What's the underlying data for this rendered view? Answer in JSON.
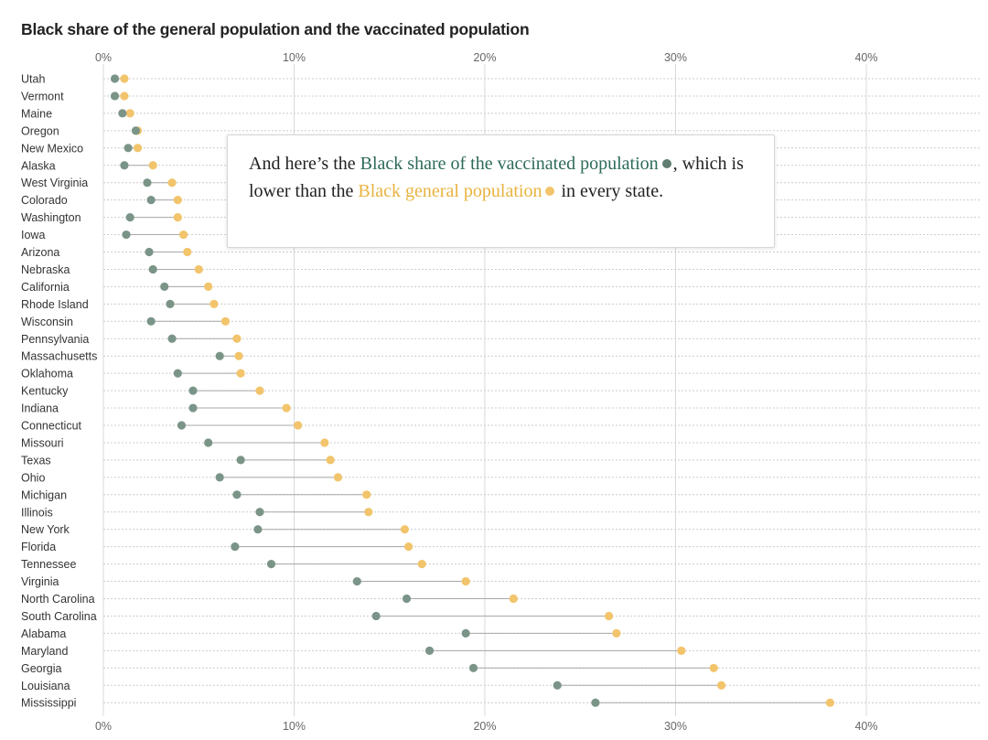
{
  "chart_data": {
    "type": "dot-range",
    "title": "Black share of the general population and the vaccinated population",
    "xlim": [
      0,
      45
    ],
    "x_ticks": [
      "0%",
      "10%",
      "20%",
      "30%",
      "40%"
    ],
    "x_tick_values": [
      0,
      10,
      20,
      30,
      40
    ],
    "series": [
      {
        "name": "Black share of the vaccinated population",
        "color": "#7b9488"
      },
      {
        "name": "Black general population",
        "color": "#f2c46b"
      }
    ],
    "states": [
      {
        "name": "Utah",
        "vaccinated": 0.6,
        "general": 1.1
      },
      {
        "name": "Vermont",
        "vaccinated": 0.6,
        "general": 1.1
      },
      {
        "name": "Maine",
        "vaccinated": 1.0,
        "general": 1.4
      },
      {
        "name": "Oregon",
        "vaccinated": 1.7,
        "general": 1.8
      },
      {
        "name": "New Mexico",
        "vaccinated": 1.3,
        "general": 1.8
      },
      {
        "name": "Alaska",
        "vaccinated": 1.1,
        "general": 2.6
      },
      {
        "name": "West Virginia",
        "vaccinated": 2.3,
        "general": 3.6
      },
      {
        "name": "Colorado",
        "vaccinated": 2.5,
        "general": 3.9
      },
      {
        "name": "Washington",
        "vaccinated": 1.4,
        "general": 3.9
      },
      {
        "name": "Iowa",
        "vaccinated": 1.2,
        "general": 4.2
      },
      {
        "name": "Arizona",
        "vaccinated": 2.4,
        "general": 4.4
      },
      {
        "name": "Nebraska",
        "vaccinated": 2.6,
        "general": 5.0
      },
      {
        "name": "California",
        "vaccinated": 3.2,
        "general": 5.5
      },
      {
        "name": "Rhode Island",
        "vaccinated": 3.5,
        "general": 5.8
      },
      {
        "name": "Wisconsin",
        "vaccinated": 2.5,
        "general": 6.4
      },
      {
        "name": "Pennsylvania",
        "vaccinated": 3.6,
        "general": 7.0
      },
      {
        "name": "Massachusetts",
        "vaccinated": 6.1,
        "general": 7.1
      },
      {
        "name": "Oklahoma",
        "vaccinated": 3.9,
        "general": 7.2
      },
      {
        "name": "Kentucky",
        "vaccinated": 4.7,
        "general": 8.2
      },
      {
        "name": "Indiana",
        "vaccinated": 4.7,
        "general": 9.6
      },
      {
        "name": "Connecticut",
        "vaccinated": 4.1,
        "general": 10.2
      },
      {
        "name": "Missouri",
        "vaccinated": 5.5,
        "general": 11.6
      },
      {
        "name": "Texas",
        "vaccinated": 7.2,
        "general": 11.9
      },
      {
        "name": "Ohio",
        "vaccinated": 6.1,
        "general": 12.3
      },
      {
        "name": "Michigan",
        "vaccinated": 7.0,
        "general": 13.8
      },
      {
        "name": "Illinois",
        "vaccinated": 8.2,
        "general": 13.9
      },
      {
        "name": "New York",
        "vaccinated": 8.1,
        "general": 15.8
      },
      {
        "name": "Florida",
        "vaccinated": 6.9,
        "general": 16.0
      },
      {
        "name": "Tennessee",
        "vaccinated": 8.8,
        "general": 16.7
      },
      {
        "name": "Virginia",
        "vaccinated": 13.3,
        "general": 19.0
      },
      {
        "name": "North Carolina",
        "vaccinated": 15.9,
        "general": 21.5
      },
      {
        "name": "South Carolina",
        "vaccinated": 14.3,
        "general": 26.5
      },
      {
        "name": "Alabama",
        "vaccinated": 19.0,
        "general": 26.9
      },
      {
        "name": "Maryland",
        "vaccinated": 17.1,
        "general": 30.3
      },
      {
        "name": "Georgia",
        "vaccinated": 19.4,
        "general": 32.0
      },
      {
        "name": "Louisiana",
        "vaccinated": 23.8,
        "general": 32.4
      },
      {
        "name": "Mississippi",
        "vaccinated": 25.8,
        "general": 38.1
      }
    ]
  },
  "callout": {
    "part1": "And here’s the ",
    "vaccinated_label": "Black share of the vaccinated population",
    "part2": ", which is lower than the ",
    "general_label": "Black general population",
    "part3": " in every state."
  }
}
